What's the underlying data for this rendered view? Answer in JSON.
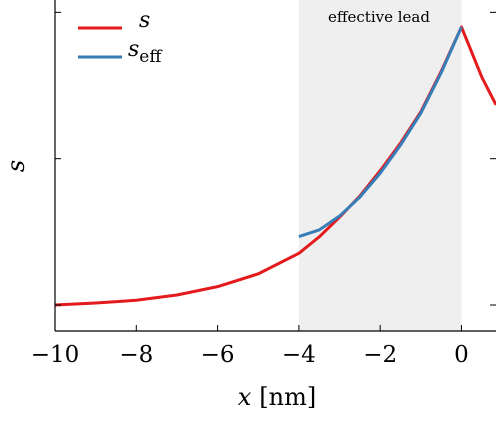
{
  "chart_data": {
    "type": "line",
    "title": "",
    "xlabel": "x",
    "xlabel_unit": "[nm]",
    "ylabel": "s",
    "xlim": [
      -10,
      0.85
    ],
    "x_ticks": [
      -10,
      -8,
      -6,
      -4,
      -2,
      0
    ],
    "x_tick_labels": [
      "−10",
      "−8",
      "−6",
      "−4",
      "−2",
      "0"
    ],
    "y_ticks": [
      0.05,
      0.55,
      1.05
    ],
    "ylim": [
      0,
      1.1
    ],
    "grid": false,
    "legend_position": "top-left",
    "shaded_region": {
      "x_start": -4,
      "x_end": 0,
      "label": "effective lead",
      "color": "#efefef"
    },
    "series": [
      {
        "name": "s",
        "color": "#e41a1c",
        "x": [
          -10,
          -9,
          -8,
          -7,
          -6,
          -5,
          -4,
          -3.5,
          -3,
          -2.5,
          -2,
          -1.5,
          -1,
          -0.5,
          0,
          0.5,
          0.85
        ],
        "y": [
          0.0,
          0.007,
          0.017,
          0.036,
          0.066,
          0.112,
          0.186,
          0.245,
          0.316,
          0.392,
          0.483,
          0.582,
          0.695,
          0.84,
          1.0,
          0.82,
          0.72
        ]
      },
      {
        "name": "s",
        "subscript": "eff",
        "color": "#377eb8",
        "x": [
          -4,
          -3.5,
          -3,
          -2.5,
          -2,
          -1.5,
          -1,
          -0.5,
          0
        ],
        "y": [
          0.246,
          0.27,
          0.32,
          0.388,
          0.474,
          0.575,
          0.69,
          0.835,
          1.0
        ]
      }
    ]
  }
}
